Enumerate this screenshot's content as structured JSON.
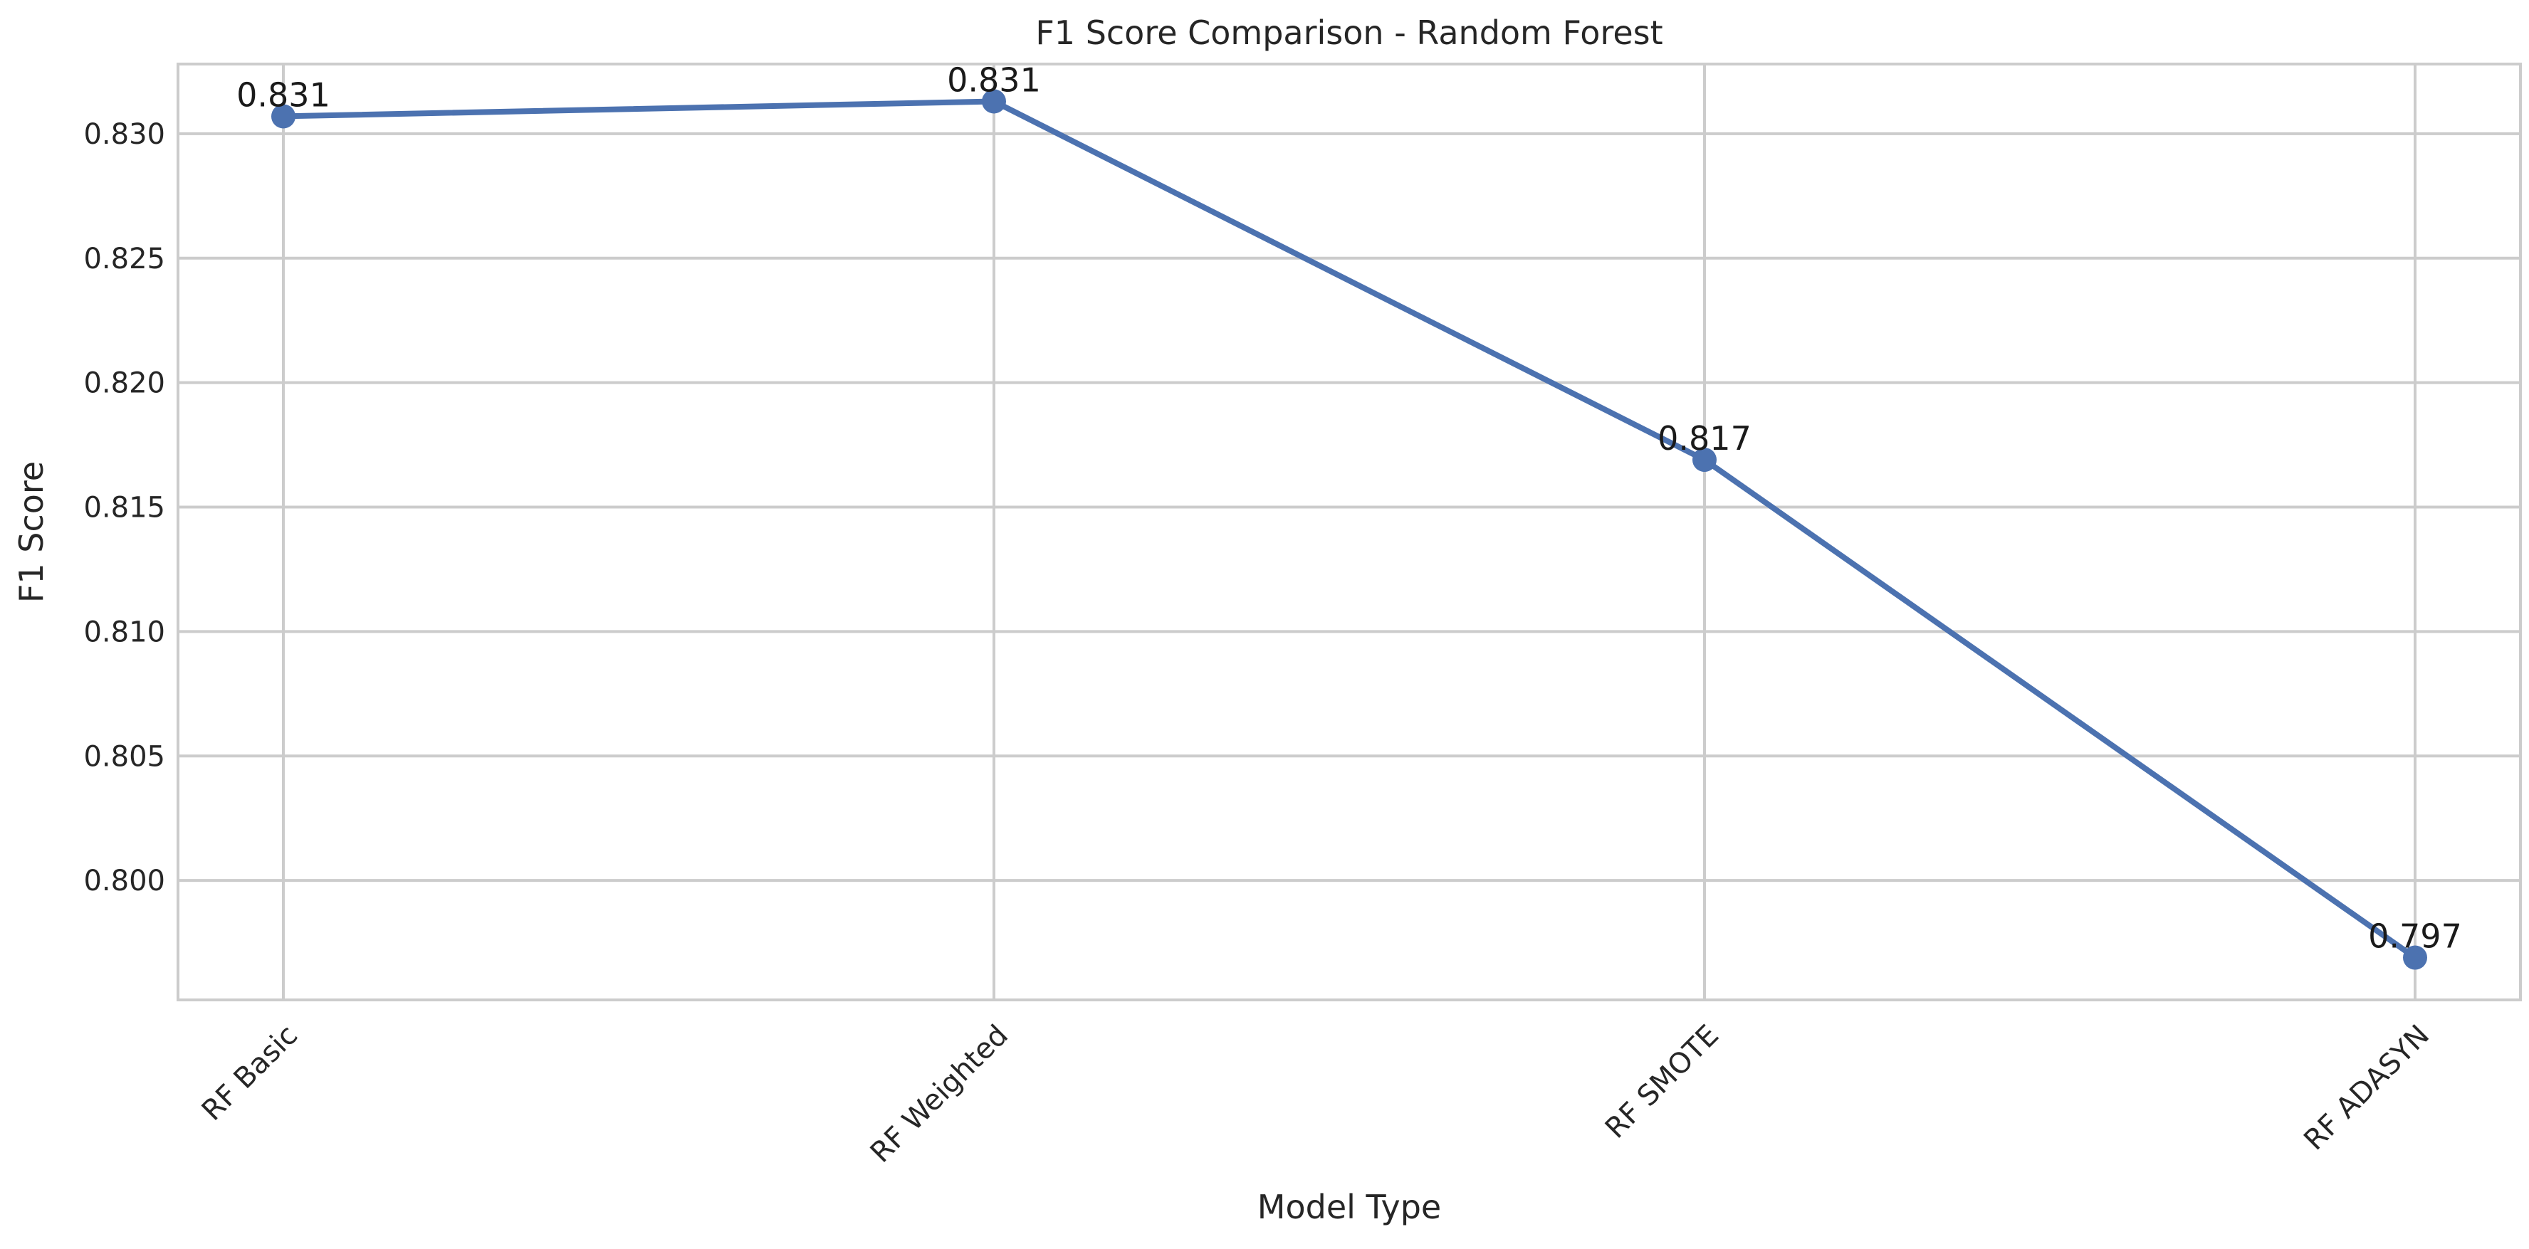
{
  "chart_data": {
    "type": "line",
    "title": "F1 Score Comparison - Random Forest",
    "xlabel": "Model Type",
    "ylabel": "F1 Score",
    "categories": [
      "RF Basic",
      "RF Weighted",
      "RF SMOTE",
      "RF ADASYN"
    ],
    "series": [
      {
        "values": [
          0.8307,
          0.8313,
          0.8169,
          0.7969
        ],
        "data_labels": [
          "0.831",
          "0.831",
          "0.817",
          "0.797"
        ]
      }
    ],
    "ylim": [
      0.7952,
      0.8328
    ],
    "yticks": [
      0.8,
      0.805,
      0.81,
      0.815,
      0.82,
      0.825,
      0.83
    ],
    "ytick_labels": [
      "0.800",
      "0.805",
      "0.810",
      "0.815",
      "0.820",
      "0.825",
      "0.830"
    ],
    "grid": true,
    "legend": "none",
    "x_tick_rotation": -45,
    "colors": {
      "line": "#4c72b0",
      "marker": "#4c72b0",
      "grid": "#cccccc"
    }
  }
}
